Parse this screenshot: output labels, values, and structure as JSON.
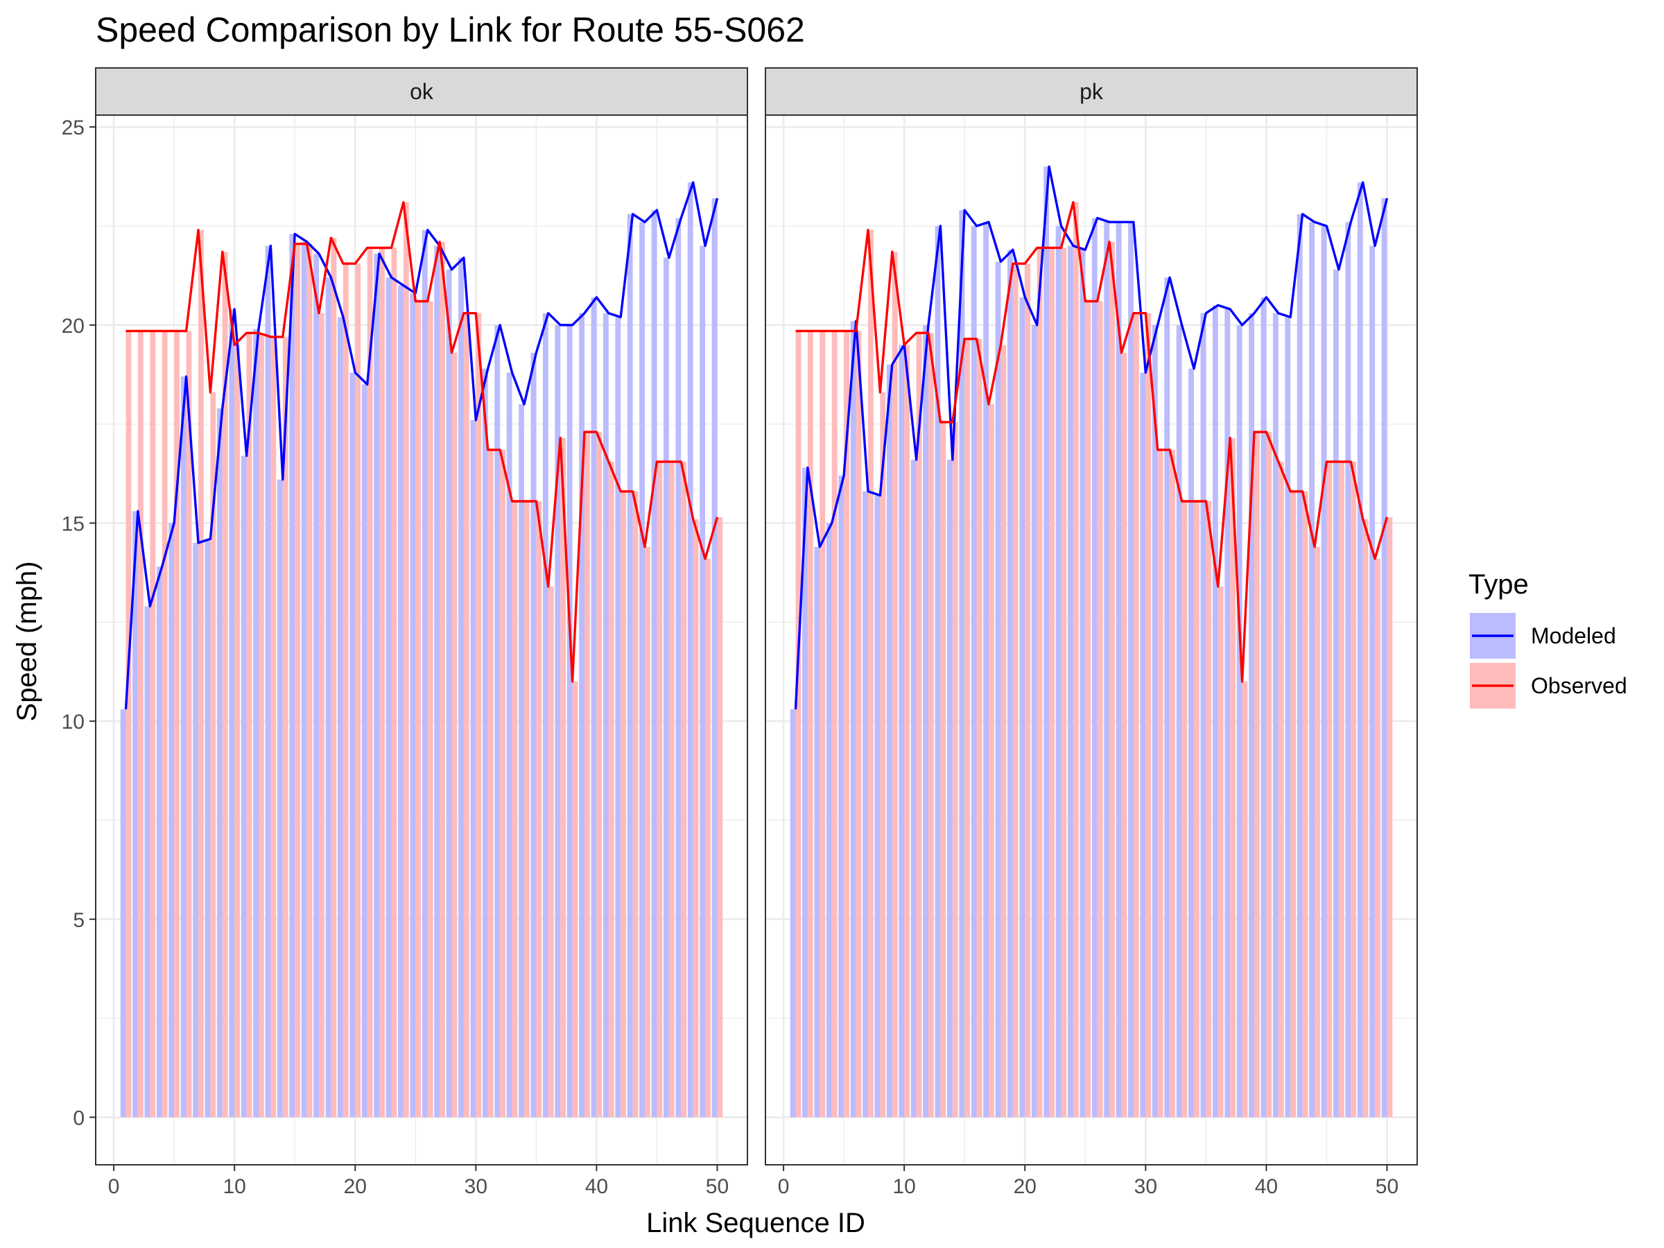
{
  "chart_data": {
    "type": "bar",
    "title": "Speed Comparison by Link for Route 55-S062",
    "xlabel": "Link Sequence ID",
    "ylabel": "Speed (mph)",
    "xlim": [
      -1.5,
      52.5
    ],
    "ylim": [
      -1.2,
      25.3
    ],
    "x_ticks": [
      0,
      10,
      20,
      30,
      40,
      50
    ],
    "y_ticks": [
      0,
      5,
      10,
      15,
      20,
      25
    ],
    "grid": true,
    "legend": {
      "title": "Type",
      "position": "right",
      "entries": [
        {
          "name": "Modeled",
          "line_color": "#0000ff",
          "fill_color": "#bbbbff"
        },
        {
          "name": "Observed",
          "line_color": "#ff0000",
          "fill_color": "#ffbbbb"
        }
      ]
    },
    "x": [
      1,
      2,
      3,
      4,
      5,
      6,
      7,
      8,
      9,
      10,
      11,
      12,
      13,
      14,
      15,
      16,
      17,
      18,
      19,
      20,
      21,
      22,
      23,
      24,
      25,
      26,
      27,
      28,
      29,
      30,
      31,
      32,
      33,
      34,
      35,
      36,
      37,
      38,
      39,
      40,
      41,
      42,
      43,
      44,
      45,
      46,
      47,
      48,
      49,
      50
    ],
    "panels": [
      {
        "name": "ok",
        "series": [
          {
            "name": "Modeled",
            "values": [
              10.3,
              15.3,
              12.9,
              13.9,
              15.0,
              18.7,
              14.5,
              14.6,
              17.9,
              20.4,
              16.7,
              19.9,
              22.0,
              16.1,
              22.3,
              22.1,
              21.8,
              21.2,
              20.2,
              18.8,
              18.5,
              21.8,
              21.2,
              21.0,
              20.8,
              22.4,
              22.0,
              21.4,
              21.7,
              17.6,
              18.9,
              20.0,
              18.8,
              18.0,
              19.3,
              20.3,
              20.0,
              20.0,
              20.3,
              20.7,
              20.3,
              20.2,
              22.8,
              22.6,
              22.9,
              21.7,
              22.7,
              23.6,
              22.0,
              23.2
            ]
          },
          {
            "name": "Observed",
            "values": [
              19.85,
              19.85,
              19.85,
              19.85,
              19.85,
              19.85,
              22.4,
              18.3,
              21.85,
              19.5,
              19.8,
              19.8,
              19.7,
              19.7,
              22.05,
              22.05,
              20.3,
              22.2,
              21.55,
              21.55,
              21.95,
              21.95,
              21.95,
              23.1,
              20.6,
              20.6,
              22.1,
              19.3,
              20.3,
              20.3,
              16.85,
              16.85,
              15.55,
              15.55,
              15.55,
              13.4,
              17.15,
              11.0,
              17.3,
              17.3,
              16.55,
              15.8,
              15.8,
              14.4,
              16.55,
              16.55,
              16.55,
              15.1,
              14.1,
              15.15
            ]
          }
        ]
      },
      {
        "name": "pk",
        "series": [
          {
            "name": "Modeled",
            "values": [
              10.3,
              16.4,
              14.4,
              15.0,
              16.2,
              20.1,
              15.8,
              15.7,
              19.0,
              19.5,
              16.6,
              20.0,
              22.5,
              16.6,
              22.9,
              22.5,
              22.6,
              21.6,
              21.9,
              20.7,
              20.0,
              24.0,
              22.5,
              22.0,
              21.9,
              22.7,
              22.6,
              22.6,
              22.6,
              18.8,
              20.0,
              21.2,
              20.0,
              18.9,
              20.3,
              20.5,
              20.4,
              20.0,
              20.3,
              20.7,
              20.3,
              20.2,
              22.8,
              22.6,
              22.5,
              21.4,
              22.6,
              23.6,
              22.0,
              23.2
            ]
          },
          {
            "name": "Observed",
            "values": [
              19.85,
              19.85,
              19.85,
              19.85,
              19.85,
              19.85,
              22.4,
              18.3,
              21.85,
              19.5,
              19.8,
              19.8,
              17.55,
              17.55,
              19.65,
              19.65,
              18.0,
              19.5,
              21.55,
              21.55,
              21.95,
              21.95,
              21.95,
              23.1,
              20.6,
              20.6,
              22.1,
              19.3,
              20.3,
              20.3,
              16.85,
              16.85,
              15.55,
              15.55,
              15.55,
              13.4,
              17.15,
              11.0,
              17.3,
              17.3,
              16.55,
              15.8,
              15.8,
              14.4,
              16.55,
              16.55,
              16.55,
              15.1,
              14.1,
              15.15
            ]
          }
        ]
      }
    ]
  }
}
